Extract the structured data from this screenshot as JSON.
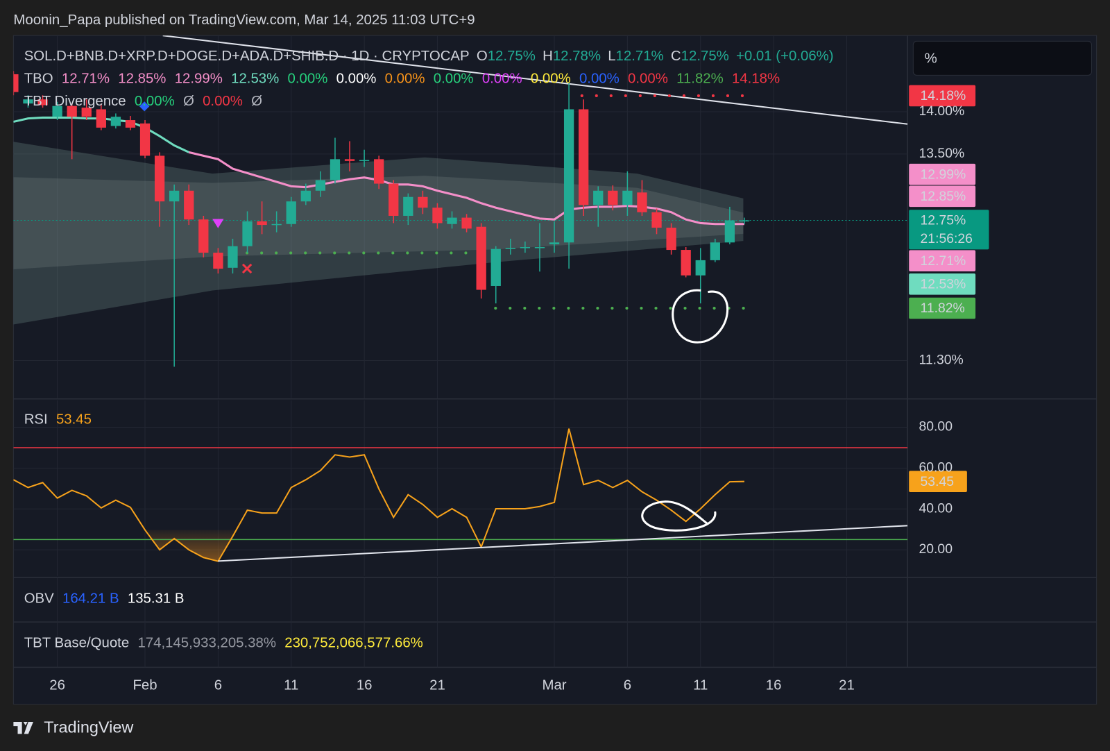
{
  "header": {
    "publisher": "Moonin_Papa published on TradingView.com, Mar 14, 2025 11:03 UTC+9",
    "unit_box": "%",
    "footer": "TradingView"
  },
  "legend": {
    "ohlc": [
      {
        "label": "O",
        "value": "12.75%"
      },
      {
        "label": "H",
        "value": "12.78%"
      },
      {
        "label": "L",
        "value": "12.71%"
      },
      {
        "label": "C",
        "value": "12.75%"
      }
    ],
    "change": "+0.01 (+0.06%)",
    "tbo": {
      "name": "TBO",
      "values": [
        {
          "text": "12.71%",
          "color": "#f48fc9"
        },
        {
          "text": "12.85%",
          "color": "#f48fc9"
        },
        {
          "text": "12.99%",
          "color": "#f48fc9"
        },
        {
          "text": "12.53%",
          "color": "#6fdcbf"
        },
        {
          "text": "0.00%",
          "color": "#26d07c"
        },
        {
          "text": "0.00%",
          "color": "#ffffff"
        },
        {
          "text": "0.00%",
          "color": "#f7931a"
        },
        {
          "text": "0.00%",
          "color": "#26d07c"
        },
        {
          "text": "0.00%",
          "color": "#e040fb"
        },
        {
          "text": "0.00%",
          "color": "#ffeb3b"
        },
        {
          "text": "0.00%",
          "color": "#2962ff"
        },
        {
          "text": "0.00%",
          "color": "#f23645"
        },
        {
          "text": "11.82%",
          "color": "#4caf50"
        },
        {
          "text": "14.18%",
          "color": "#f23645"
        }
      ]
    },
    "divergence": {
      "name": "TBT Divergence",
      "values": [
        {
          "text": "0.00%",
          "color": "#26d07c"
        },
        {
          "text": "Ø",
          "color": "#b2b5be"
        },
        {
          "text": "0.00%",
          "color": "#f23645"
        },
        {
          "text": "Ø",
          "color": "#b2b5be"
        }
      ]
    },
    "obv": {
      "name": "OBV",
      "values": [
        {
          "text": "164.21 B",
          "color": "#2962ff"
        },
        {
          "text": "135.31 B",
          "color": "#ffffff"
        }
      ]
    },
    "base_quote": {
      "name": "TBT Base/Quote",
      "values": [
        {
          "text": "174,145,933,205.38%",
          "color": "#9598a1"
        },
        {
          "text": "230,752,066,577.66%",
          "color": "#ffeb3b"
        }
      ]
    }
  },
  "price_tags": [
    {
      "text": "14.18%",
      "color": "#f23645"
    },
    {
      "text": "12.99%",
      "color": "#f48fc9"
    },
    {
      "text": "12.85%",
      "color": "#f48fc9"
    },
    {
      "text": "12.75%",
      "countdown": "21:56:26",
      "color": "#089981"
    },
    {
      "text": "12.71%",
      "color": "#f48fc9"
    },
    {
      "text": "12.53%",
      "color": "#6fdcbf"
    },
    {
      "text": "11.82%",
      "color": "#4caf50"
    }
  ],
  "chart_data": [
    {
      "type": "candlestick",
      "title": "SOL.D+BNB.D+XRP.D+DOGE.D+ADA.D+SHIB.D · 1D · CRYPTOCAP",
      "categories": [
        null,
        null,
        null,
        "26",
        null,
        null,
        null,
        null,
        null,
        "Feb",
        null,
        null,
        null,
        null,
        "6",
        null,
        null,
        null,
        null,
        "11",
        null,
        null,
        null,
        null,
        "16",
        null,
        null,
        null,
        null,
        "21",
        null,
        null,
        null,
        null,
        null,
        null,
        null,
        "Mar",
        null,
        null,
        null,
        null,
        "6",
        null,
        null,
        null,
        null,
        "11",
        null,
        null,
        null,
        null,
        "16",
        null,
        null,
        null,
        null,
        "21",
        null,
        null,
        null
      ],
      "open": [
        14.46,
        14.1,
        14.15,
        13.94,
        14.07,
        14.05,
        14.03,
        13.83,
        13.9,
        13.86,
        13.48,
        12.96,
        13.08,
        12.76,
        12.4,
        12.24,
        12.47,
        12.74,
        12.7,
        12.71,
        12.96,
        13.08,
        13.2,
        13.44,
        13.42,
        13.44,
        13.16,
        12.8,
        13.01,
        12.89,
        12.71,
        12.78,
        12.68,
        12.05,
        12.44,
        12.45,
        12.46,
        12.49,
        12.51,
        14.03,
        12.92,
        13.08,
        12.92,
        13.06,
        12.84,
        12.67,
        12.43,
        12.16,
        12.32,
        12.51,
        12.75,
        null,
        null,
        null,
        null,
        null,
        null,
        null,
        null,
        null,
        null
      ],
      "high": [
        14.5,
        14.2,
        14.2,
        14.12,
        14.1,
        14.15,
        14.1,
        13.98,
        13.95,
        13.9,
        13.52,
        13.15,
        13.15,
        12.8,
        12.45,
        12.55,
        12.85,
        12.96,
        12.85,
        13.01,
        13.16,
        13.3,
        13.69,
        13.65,
        13.55,
        13.48,
        13.2,
        13.05,
        13.08,
        12.94,
        12.85,
        12.82,
        12.72,
        12.47,
        12.55,
        12.52,
        12.72,
        12.74,
        14.35,
        14.15,
        13.13,
        13.14,
        13.3,
        13.2,
        12.88,
        12.72,
        12.46,
        12.45,
        12.55,
        12.9,
        12.78,
        null,
        null,
        null,
        null,
        null,
        null,
        null,
        null,
        null,
        null
      ],
      "low": [
        14.2,
        14.05,
        14.05,
        13.9,
        13.44,
        13.9,
        13.78,
        13.8,
        13.78,
        13.45,
        12.68,
        11.24,
        12.7,
        12.35,
        12.18,
        12.18,
        12.4,
        12.6,
        12.62,
        12.68,
        12.92,
        13.01,
        13.16,
        13.3,
        13.35,
        13.1,
        12.72,
        12.7,
        12.82,
        12.66,
        12.66,
        12.62,
        11.92,
        11.87,
        12.38,
        12.4,
        12.2,
        12.4,
        12.23,
        12.8,
        12.68,
        12.86,
        12.8,
        12.8,
        12.6,
        12.38,
        12.14,
        11.87,
        12.3,
        12.49,
        12.71,
        null,
        null,
        null,
        null,
        null,
        null,
        null,
        null,
        null,
        null
      ],
      "close": [
        14.24,
        14.15,
        14.08,
        14.07,
        13.94,
        13.94,
        13.81,
        13.94,
        13.81,
        13.48,
        12.96,
        13.08,
        12.76,
        12.4,
        12.23,
        12.47,
        12.74,
        12.7,
        12.71,
        12.96,
        13.08,
        13.2,
        13.44,
        13.42,
        13.43,
        13.16,
        12.8,
        13.01,
        12.89,
        12.72,
        12.78,
        12.66,
        12.01,
        12.44,
        12.45,
        12.46,
        12.46,
        12.51,
        14.03,
        12.92,
        13.08,
        12.92,
        13.08,
        12.84,
        12.67,
        12.43,
        12.16,
        12.32,
        12.51,
        12.75,
        12.75,
        null,
        null,
        null,
        null,
        null,
        null,
        null,
        null,
        null,
        null
      ],
      "ma": [
        13.88,
        13.92,
        13.93,
        13.93,
        13.93,
        13.92,
        13.92,
        13.9,
        13.88,
        13.81,
        13.71,
        13.6,
        13.52,
        13.48,
        13.44,
        13.33,
        13.28,
        13.23,
        13.18,
        13.13,
        13.12,
        13.15,
        13.18,
        13.21,
        13.23,
        13.2,
        13.15,
        13.15,
        13.13,
        13.08,
        13.04,
        13.0,
        12.94,
        12.89,
        12.85,
        12.81,
        12.77,
        12.76,
        12.87,
        12.89,
        12.9,
        12.9,
        12.91,
        12.9,
        12.88,
        12.84,
        12.76,
        12.72,
        12.71,
        12.71,
        12.71,
        null,
        null,
        null,
        null,
        null,
        null,
        null,
        null,
        null,
        null
      ],
      "ma_colors": [
        "#6fdcbf",
        "#f48fc9"
      ],
      "up_color": "#22ab94",
      "down_color": "#f23645",
      "ylim": [
        10.94,
        14.95
      ],
      "log_scale": true,
      "yticks": [
        {
          "value": 14,
          "label": "14.00%"
        },
        {
          "value": 13.5,
          "label": "13.50%"
        },
        {
          "value": 11.3,
          "label": "11.30%"
        }
      ],
      "grid": true
    },
    {
      "type": "line",
      "title": "RSI",
      "categories": [
        null,
        null,
        null,
        "26",
        null,
        null,
        null,
        null,
        null,
        "Feb",
        null,
        null,
        null,
        null,
        "6",
        null,
        null,
        null,
        null,
        "11",
        null,
        null,
        null,
        null,
        "16",
        null,
        null,
        null,
        null,
        "21",
        null,
        null,
        null,
        null,
        null,
        null,
        null,
        "Mar",
        null,
        null,
        null,
        null,
        "6",
        null,
        null,
        null,
        null,
        "11",
        null,
        null,
        null,
        null,
        "16",
        null,
        null,
        null,
        null,
        "21",
        null,
        null,
        null
      ],
      "series": [
        {
          "color": "#f7a21b",
          "values": [
            54.3,
            50.5,
            52.9,
            45.3,
            49.1,
            46.4,
            40.5,
            44.3,
            40.8,
            29.7,
            20.0,
            25.5,
            20.0,
            16.2,
            14.4,
            26.6,
            39.4,
            38.0,
            38.0,
            50.5,
            54.3,
            58.8,
            66.5,
            65.4,
            66.5,
            49.8,
            35.9,
            47.0,
            42.2,
            35.9,
            40.1,
            35.9,
            21.4,
            40.1,
            40.1,
            40.1,
            41.2,
            43.2,
            79.3,
            51.9,
            54.0,
            50.5,
            54.0,
            48.4,
            44.3,
            39.4,
            33.9,
            40.1,
            47.0,
            53.3,
            53.45,
            null,
            null,
            null,
            null,
            null,
            null,
            null,
            null,
            null,
            null
          ]
        }
      ],
      "bands": [
        {
          "value": 70,
          "color": "#f23645"
        },
        {
          "value": 25,
          "color": "#4caf50"
        }
      ],
      "ylim": [
        7.2,
        93.2
      ],
      "yticks": [
        {
          "value": 20,
          "label": "20.00"
        },
        {
          "value": 40,
          "label": "40.00"
        },
        {
          "value": 60,
          "label": "60.00"
        },
        {
          "value": 80,
          "label": "80.00"
        }
      ],
      "grid": true
    }
  ]
}
